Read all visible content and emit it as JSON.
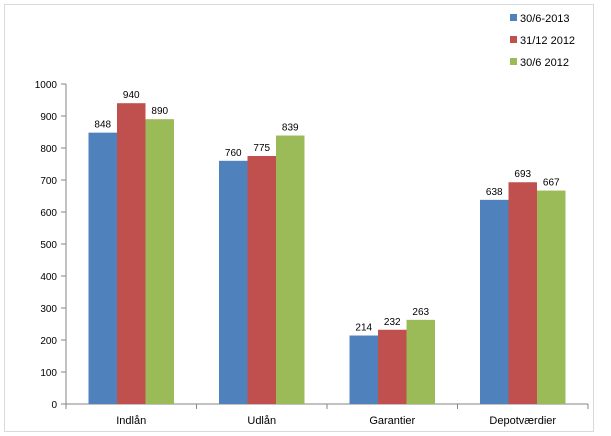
{
  "chart_data": {
    "type": "bar",
    "categories": [
      "Indlån",
      "Udlån",
      "Garantier",
      "Depotværdier"
    ],
    "series": [
      {
        "name": "30/6-2013",
        "color": "#4F81BD",
        "values": [
          848,
          760,
          214,
          638
        ]
      },
      {
        "name": "31/12 2012",
        "color": "#C0504D",
        "values": [
          940,
          775,
          232,
          693
        ]
      },
      {
        "name": "30/6 2012",
        "color": "#9BBB59",
        "values": [
          890,
          839,
          263,
          667
        ]
      }
    ],
    "ylim": [
      0,
      1000
    ],
    "yticks": [
      0,
      100,
      200,
      300,
      400,
      500,
      600,
      700,
      800,
      900,
      1000
    ],
    "grid": false,
    "legend_position": "top-right",
    "data_labels": true
  }
}
